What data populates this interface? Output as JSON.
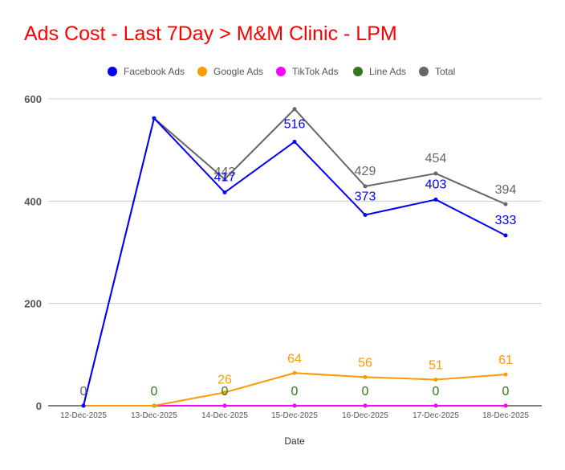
{
  "chart_data": {
    "type": "line",
    "title": "Ads Cost - Last 7Day > M&M Clinic - LPM",
    "xlabel": "Date",
    "ylabel": "",
    "categories": [
      "12-Dec-2025",
      "13-Dec-2025",
      "14-Dec-2025",
      "15-Dec-2025",
      "16-Dec-2025",
      "17-Dec-2025",
      "18-Dec-2025"
    ],
    "ylim": [
      0,
      600
    ],
    "yticks": [
      0,
      200,
      400,
      600
    ],
    "grid": true,
    "legend_position": "top",
    "series": [
      {
        "name": "Facebook Ads",
        "color": "#0000ff",
        "values": [
          0,
          562,
          417,
          516,
          373,
          403,
          333
        ],
        "labels": [
          null,
          null,
          "417",
          "516",
          "373",
          "403",
          "333"
        ]
      },
      {
        "name": "Google Ads",
        "color": "#ff9900",
        "values": [
          0,
          0,
          26,
          64,
          56,
          51,
          61
        ],
        "labels": [
          null,
          null,
          "26",
          "64",
          "56",
          "51",
          "61"
        ]
      },
      {
        "name": "TikTok Ads",
        "color": "#ff00ff",
        "values": [
          0,
          0,
          0,
          0,
          0,
          0,
          0
        ],
        "labels": [
          null,
          null,
          null,
          null,
          null,
          null,
          null
        ]
      },
      {
        "name": "Line Ads",
        "color": "#38761d",
        "values": [
          0,
          0,
          0,
          0,
          0,
          0,
          0
        ],
        "labels": [
          null,
          "0",
          "0",
          "0",
          "0",
          "0",
          "0"
        ]
      },
      {
        "name": "Total",
        "color": "#666666",
        "values": [
          0,
          562,
          443,
          580,
          429,
          454,
          394
        ],
        "labels": [
          "0",
          null,
          "443",
          null,
          "429",
          "454",
          "394"
        ]
      }
    ]
  }
}
